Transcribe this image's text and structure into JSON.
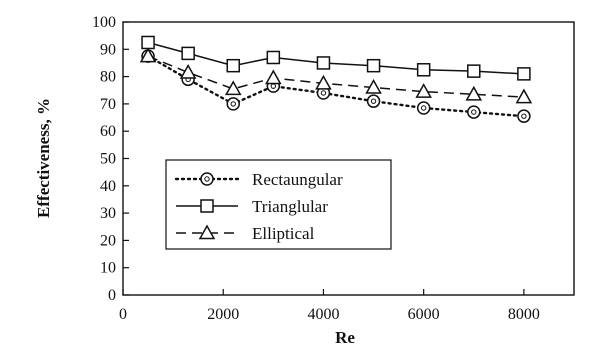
{
  "chart_data": {
    "type": "line",
    "title": "",
    "xlabel": "Re",
    "ylabel": "Effectiveness, %",
    "xlim": [
      0,
      9000
    ],
    "ylim": [
      0,
      100
    ],
    "xticks": [
      0,
      2000,
      4000,
      6000,
      8000
    ],
    "yticks": [
      0,
      10,
      20,
      30,
      40,
      50,
      60,
      70,
      80,
      90,
      100
    ],
    "grid": false,
    "legend_position": "center-left",
    "series": [
      {
        "name": "Rectaungular",
        "line_style": "dotted",
        "marker": "circle",
        "color": "#111111",
        "x": [
          500,
          1300,
          2200,
          3000,
          4000,
          5000,
          6000,
          7000,
          8000
        ],
        "y": [
          87.5,
          79,
          70,
          76.5,
          74,
          71,
          68.5,
          67,
          65.5
        ]
      },
      {
        "name": "Trianglular",
        "line_style": "solid",
        "marker": "square",
        "color": "#111111",
        "x": [
          500,
          1300,
          2200,
          3000,
          4000,
          5000,
          6000,
          7000,
          8000
        ],
        "y": [
          92.5,
          88.5,
          84,
          87,
          85,
          84,
          82.5,
          82,
          81
        ]
      },
      {
        "name": "Elliptical",
        "line_style": "dashed",
        "marker": "triangle",
        "color": "#111111",
        "x": [
          500,
          1300,
          2200,
          3000,
          4000,
          5000,
          6000,
          7000,
          8000
        ],
        "y": [
          87.5,
          81.5,
          75.5,
          79.5,
          77.5,
          76,
          74.5,
          73.5,
          72.5
        ]
      }
    ]
  }
}
